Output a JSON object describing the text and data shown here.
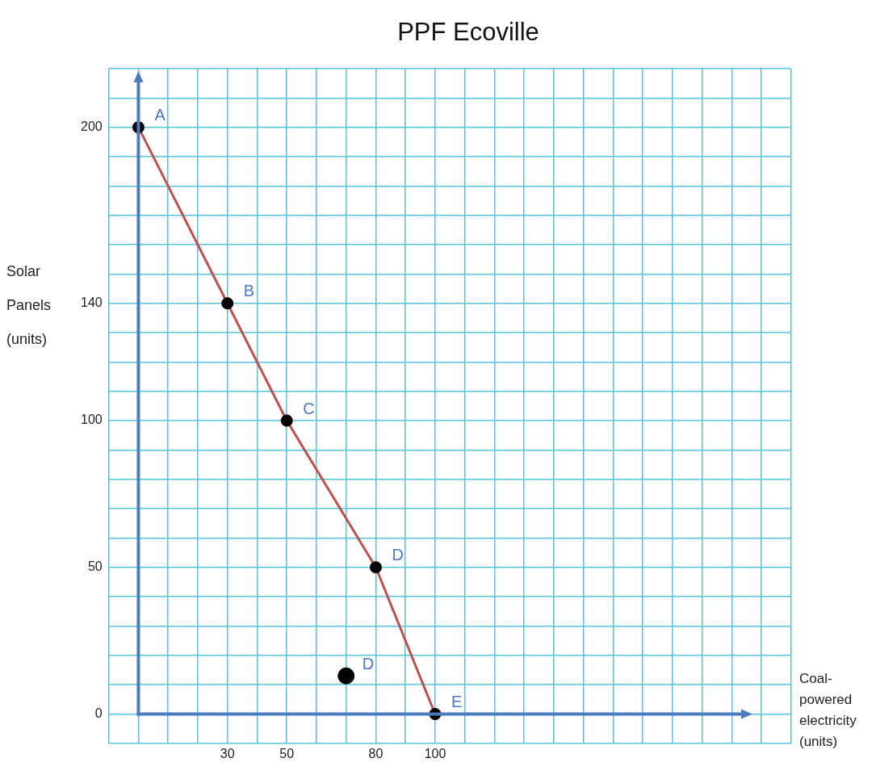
{
  "chart_data": {
    "type": "line",
    "title": "PPF Ecoville",
    "xlabel": "Coal-powered electricity (units)",
    "ylabel": "Solar Panels (units)",
    "x": [
      0,
      30,
      50,
      80,
      100
    ],
    "series": [
      {
        "color": "#c0504d",
        "values": [
          200,
          140,
          100,
          50,
          0
        ]
      },
      {
        "type": "scatter",
        "color": "#000000",
        "x": [
          70
        ],
        "values": [
          13
        ]
      }
    ],
    "xlim": [
      -10,
      220
    ],
    "ylim": [
      -10,
      220
    ],
    "xticks": [
      {
        "value": -10,
        "label": null
      },
      {
        "value": 0,
        "label": null
      },
      {
        "value": 10,
        "label": null
      },
      {
        "value": 20,
        "label": null
      },
      30,
      {
        "value": 40,
        "label": null
      },
      50,
      {
        "value": 60,
        "label": null
      },
      {
        "value": 70,
        "label": null
      },
      80,
      {
        "value": 90,
        "label": null
      },
      100,
      {
        "value": 110,
        "label": null
      },
      {
        "value": 120,
        "label": null
      },
      {
        "value": 130,
        "label": null
      },
      {
        "value": 140,
        "label": null
      },
      {
        "value": 150,
        "label": null
      },
      {
        "value": 160,
        "label": null
      },
      {
        "value": 170,
        "label": null
      },
      {
        "value": 180,
        "label": null
      },
      {
        "value": 190,
        "label": null
      },
      {
        "value": 200,
        "label": null
      },
      {
        "value": 210,
        "label": null
      },
      {
        "value": 220,
        "label": null
      }
    ],
    "yticks": [
      {
        "value": -10,
        "label": null
      },
      0,
      {
        "value": 10,
        "label": null
      },
      {
        "value": 20,
        "label": null
      },
      {
        "value": 30,
        "label": null
      },
      {
        "value": 40,
        "label": null
      },
      50,
      {
        "value": 60,
        "label": null
      },
      {
        "value": 70,
        "label": null
      },
      {
        "value": 80,
        "label": null
      },
      {
        "value": 90,
        "label": null
      },
      100,
      {
        "value": 110,
        "label": null
      },
      {
        "value": 120,
        "label": null
      },
      {
        "value": 130,
        "label": null
      },
      140,
      {
        "value": 150,
        "label": null
      },
      {
        "value": 160,
        "label": null
      },
      {
        "value": 170,
        "label": null
      },
      {
        "value": 180,
        "label": null
      },
      {
        "value": 190,
        "label": null
      },
      200,
      {
        "value": 210,
        "label": null
      },
      {
        "value": 220,
        "label": null
      }
    ],
    "annotations": [
      {
        "text": "A",
        "x": 0,
        "y": 200
      },
      {
        "text": "B",
        "x": 30,
        "y": 140
      },
      {
        "text": "C",
        "x": 50,
        "y": 100
      },
      {
        "text": "D",
        "x": 80,
        "y": 50
      },
      {
        "text": "E",
        "x": 100,
        "y": 0
      },
      {
        "text": "D",
        "x": 70,
        "y": 13
      }
    ],
    "grid": true,
    "legend": false,
    "marker": "circle",
    "line_style": "solid"
  }
}
